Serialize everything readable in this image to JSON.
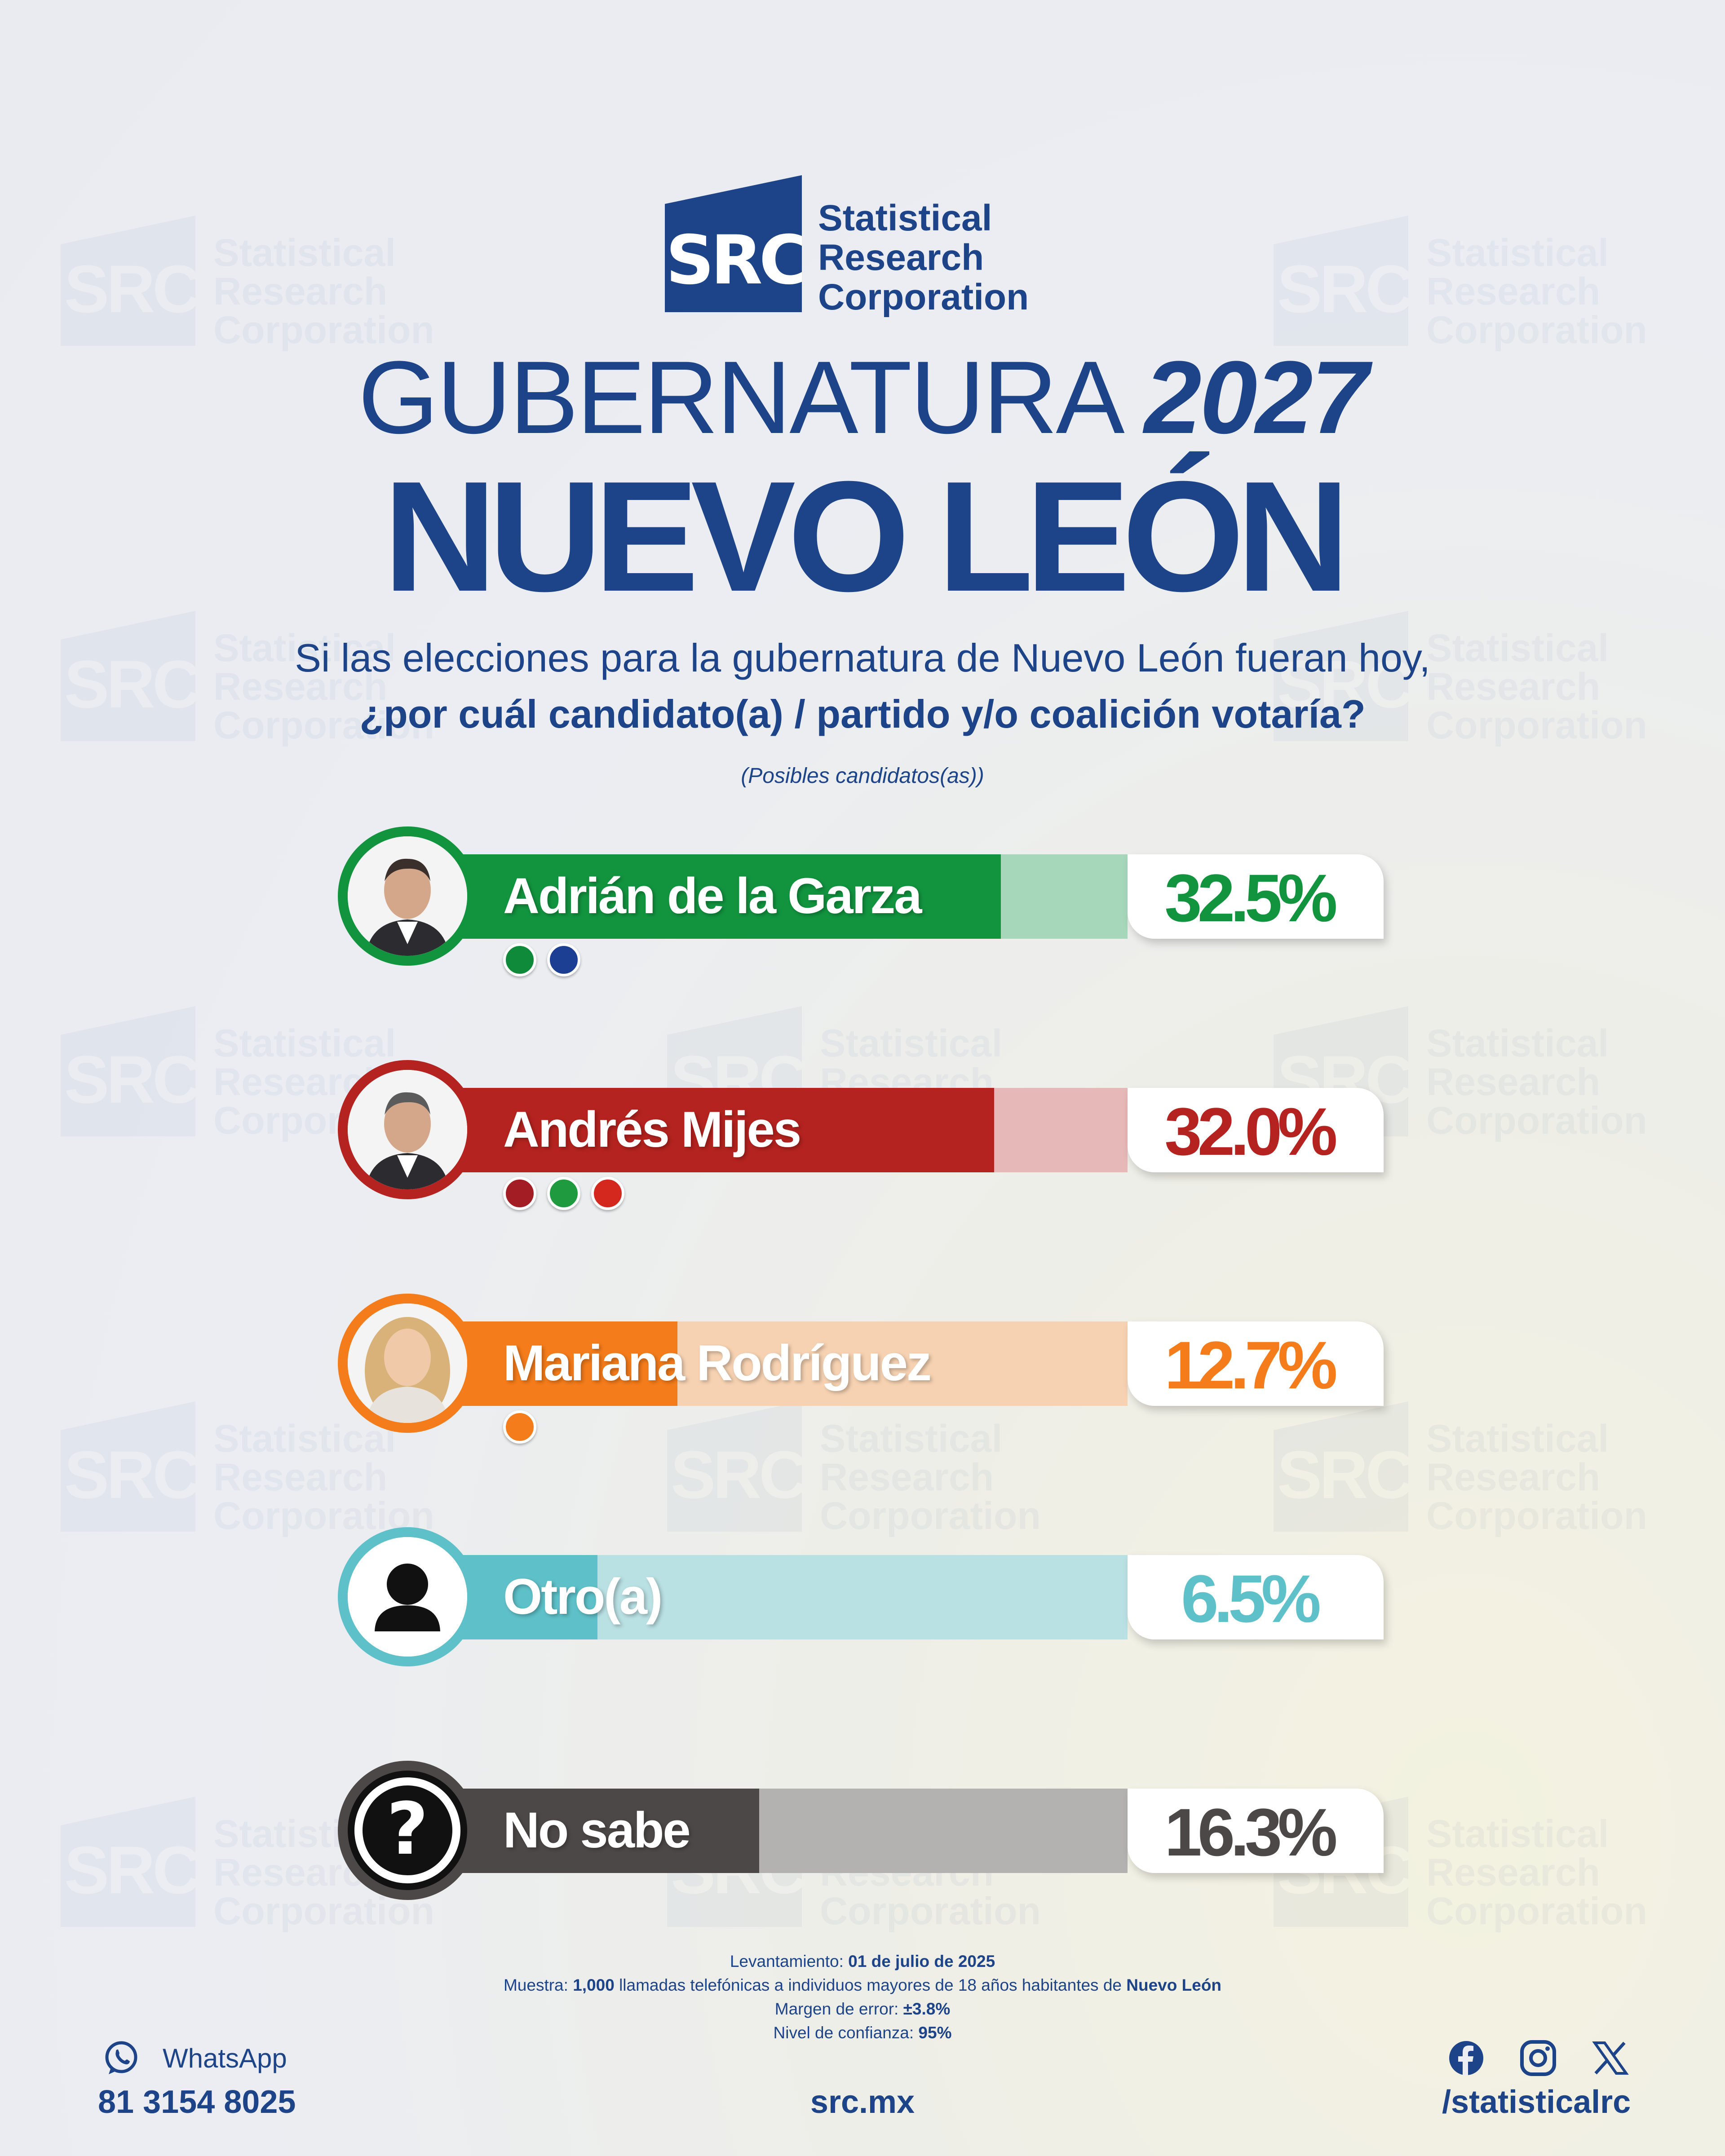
{
  "logo": {
    "mark": "SRC",
    "line1": "Statistical",
    "line2": "Research",
    "line3": "Corporation"
  },
  "title": {
    "part1": "GUBERNATURA",
    "part2": "2027",
    "main": "NUEVO LEÓN"
  },
  "question": {
    "line1": "Si las elecciones para la gubernatura de Nuevo León fueran hoy,",
    "line2": "¿por cuál candidato(a) / partido y/o coalición votaría?",
    "note": "(Posibles candidatos(as))"
  },
  "chart_data": {
    "type": "bar",
    "orientation": "horizontal",
    "categories": [
      "Adrián de la Garza",
      "Andrés Mijes",
      "Mariana Rodríguez",
      "Otro(a)",
      "No sabe"
    ],
    "values": [
      32.5,
      32.0,
      12.7,
      6.5,
      16.3
    ],
    "value_labels": [
      "32.5%",
      "32.0%",
      "12.7%",
      "6.5%",
      "16.3%"
    ],
    "colors": [
      "#12943f",
      "#b4231f",
      "#f47c1b",
      "#5ec0c8",
      "#4d4848"
    ],
    "light_colors": [
      "#a6d7bb",
      "#e6b8b8",
      "#f6d2b2",
      "#b9e0e3",
      "#b4b1b1"
    ],
    "party_badges": [
      [
        "PRI",
        "PAN"
      ],
      [
        "morena",
        "VERDE",
        "PT"
      ],
      [
        "MC"
      ],
      [],
      []
    ],
    "icons": [
      "candidate-photo",
      "candidate-photo",
      "candidate-photo",
      "person-icon",
      "question-icon"
    ]
  },
  "methodology": {
    "l1_label": "Levantamiento:",
    "l1_value": "01 de julio de 2025",
    "l2_label": "Muestra:",
    "l2_value": "1,000",
    "l2_text": "llamadas telefónicas a individuos mayores de 18 años habitantes de",
    "l2_place": "Nuevo León",
    "l3_label": "Margen de error:",
    "l3_value": "±3.8%",
    "l4_label": "Nivel de confianza:",
    "l4_value": "95%"
  },
  "footer": {
    "whatsapp_label": "WhatsApp",
    "phone": "81 3154 8025",
    "website": "src.mx",
    "social_handle": "/statisticalrc",
    "brand_color": "#1d4488"
  }
}
